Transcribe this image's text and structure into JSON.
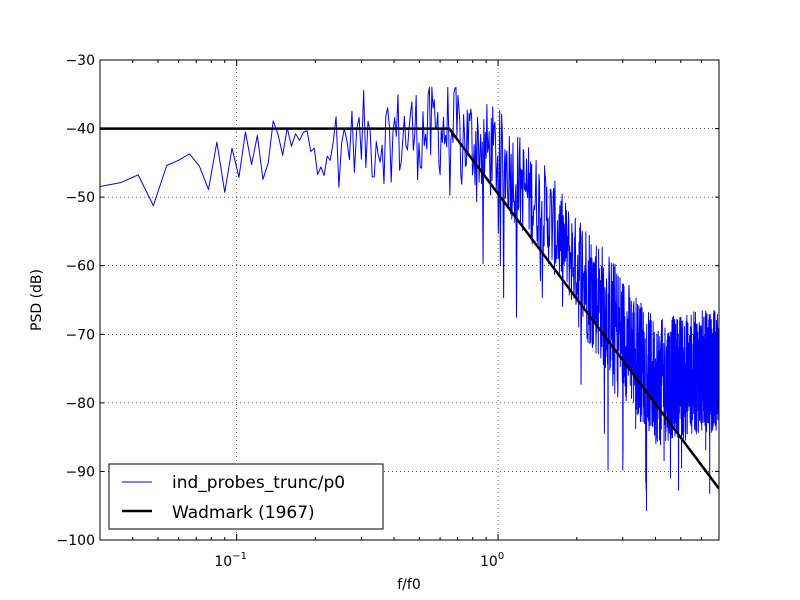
{
  "chart_data": {
    "type": "line",
    "xlabel": "f/f0",
    "ylabel": "PSD (dB)",
    "xscale": "log",
    "xlim": [
      0.03,
      7.0
    ],
    "ylim": [
      -100,
      -30
    ],
    "x_tick_labels": [
      {
        "value": 0.1,
        "base": "10",
        "exp": "−1"
      },
      {
        "value": 1,
        "base": "10",
        "exp": "0"
      }
    ],
    "y_ticks": [
      -100,
      -90,
      -80,
      -70,
      -60,
      -50,
      -40,
      -30
    ],
    "y_tick_labels": [
      "−100",
      "−90",
      "−80",
      "−70",
      "−60",
      "−50",
      "−40",
      "−30"
    ],
    "grid": true,
    "legend_position": "lower-left",
    "series": [
      {
        "name": "ind_probes_trunc/p0",
        "color": "#0000ff",
        "style": "noisy",
        "envelope": {
          "x": [
            0.03,
            0.06,
            0.1,
            0.2,
            0.4,
            0.65,
            1.0,
            1.5,
            2.0,
            3.0,
            4.0,
            5.0,
            7.0
          ],
          "y": [
            -50,
            -47,
            -45,
            -42,
            -41,
            -40,
            -44,
            -52,
            -60,
            -70,
            -77,
            -76,
            -75
          ]
        }
      },
      {
        "name": "Wadmark (1967)",
        "color": "#000000",
        "style": "solid",
        "x": [
          0.03,
          0.65,
          7.0
        ],
        "y": [
          -40,
          -40,
          -92.5
        ]
      }
    ]
  }
}
